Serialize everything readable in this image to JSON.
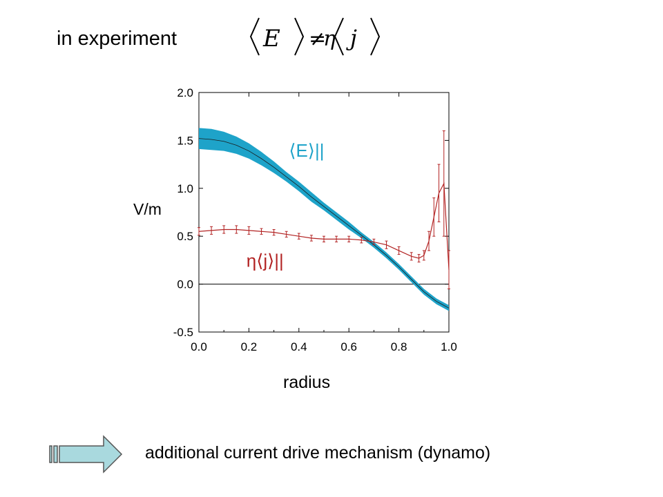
{
  "slide": {
    "title": "in experiment",
    "equation": "⟨E⟩ ≠ η⟨j⟩",
    "conclusion": "additional current drive mechanism (dynamo)",
    "arrow_icon": "right-arrow-icon"
  },
  "chart_data": {
    "type": "line",
    "xlabel": "radius",
    "ylabel": "V/m",
    "xlim": [
      0.0,
      1.0
    ],
    "ylim": [
      -0.5,
      2.0
    ],
    "xticks": [
      "0.0",
      "0.2",
      "0.4",
      "0.6",
      "0.8",
      "1.0"
    ],
    "yticks": [
      "-0.5",
      "0.0",
      "0.5",
      "1.0",
      "1.5",
      "2.0"
    ],
    "grid": false,
    "zero_line": true,
    "series": [
      {
        "name": "⟨E⟩||",
        "color": "#1ea3c9",
        "style": "line with shaded uncertainty band",
        "x": [
          0.0,
          0.05,
          0.1,
          0.15,
          0.2,
          0.25,
          0.3,
          0.35,
          0.4,
          0.45,
          0.5,
          0.55,
          0.6,
          0.65,
          0.7,
          0.75,
          0.8,
          0.85,
          0.9,
          0.95,
          1.0
        ],
        "y": [
          1.52,
          1.51,
          1.49,
          1.45,
          1.39,
          1.31,
          1.22,
          1.12,
          1.02,
          0.91,
          0.81,
          0.71,
          0.61,
          0.51,
          0.41,
          0.3,
          0.18,
          0.05,
          -0.08,
          -0.18,
          -0.25
        ],
        "err": [
          0.11,
          0.11,
          0.1,
          0.09,
          0.08,
          0.07,
          0.06,
          0.05,
          0.05,
          0.05,
          0.04,
          0.04,
          0.04,
          0.03,
          0.03,
          0.03,
          0.03,
          0.03,
          0.03,
          0.03,
          0.03
        ]
      },
      {
        "name": "η⟨j⟩||",
        "color": "#b22222",
        "style": "line with error bars",
        "x": [
          0.0,
          0.05,
          0.1,
          0.15,
          0.2,
          0.25,
          0.3,
          0.35,
          0.4,
          0.45,
          0.5,
          0.55,
          0.6,
          0.65,
          0.7,
          0.75,
          0.8,
          0.85,
          0.88,
          0.9,
          0.92,
          0.94,
          0.96,
          0.98,
          1.0
        ],
        "y": [
          0.55,
          0.56,
          0.57,
          0.57,
          0.56,
          0.55,
          0.54,
          0.52,
          0.5,
          0.48,
          0.47,
          0.47,
          0.47,
          0.46,
          0.44,
          0.41,
          0.35,
          0.29,
          0.27,
          0.3,
          0.45,
          0.7,
          0.95,
          1.05,
          0.15
        ],
        "err": [
          0.04,
          0.04,
          0.04,
          0.04,
          0.04,
          0.03,
          0.03,
          0.03,
          0.03,
          0.03,
          0.03,
          0.03,
          0.03,
          0.03,
          0.03,
          0.04,
          0.04,
          0.04,
          0.04,
          0.05,
          0.1,
          0.2,
          0.3,
          0.55,
          0.2
        ]
      }
    ]
  }
}
